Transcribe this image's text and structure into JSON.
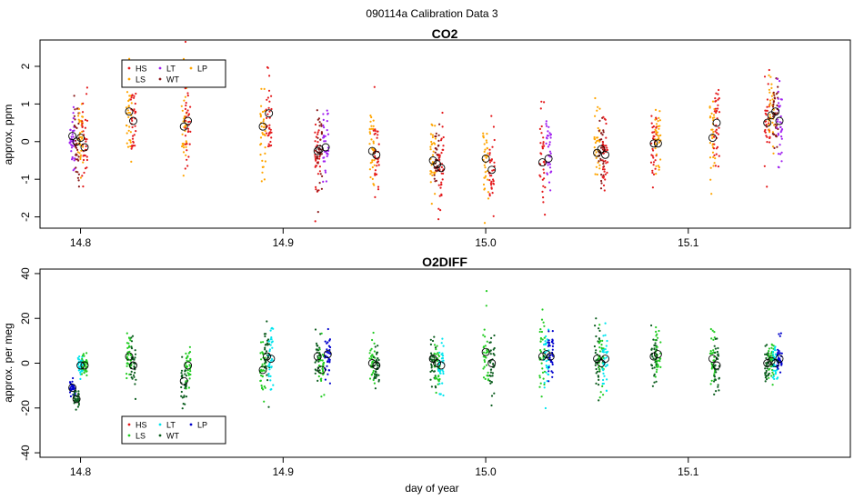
{
  "page": {
    "title": "090114a   Calibration Data 3",
    "xlabel": "day of year"
  },
  "chart_data": [
    {
      "type": "scatter",
      "title": "CO2",
      "ylabel": "approx. ppm",
      "xlabel": "day of year",
      "xlim": [
        14.78,
        15.18
      ],
      "ylim": [
        -2.3,
        2.7
      ],
      "xticks": [
        "14.8",
        "14.9",
        "15.0",
        "15.1"
      ],
      "xtick_values": [
        14.8,
        14.9,
        15.0,
        15.1
      ],
      "yticks": [
        "-2",
        "-1",
        "0",
        "1",
        "2"
      ],
      "ytick_values": [
        -2,
        -1,
        0,
        1,
        2
      ],
      "legend_position": "top-left",
      "legend": [
        {
          "name": "HS",
          "color": "#e41a1c"
        },
        {
          "name": "LS",
          "color": "#ffa500"
        },
        {
          "name": "LT",
          "color": "#a020f0"
        },
        {
          "name": "WT",
          "color": "#8b1a1a"
        },
        {
          "name": "LP",
          "color": "#ffa500"
        }
      ],
      "groups": [
        {
          "series": [
            {
              "name": "LT",
              "x": 14.796,
              "mean": 0.15,
              "sd": 0.55,
              "color": "#a020f0"
            },
            {
              "name": "WT",
              "x": 14.798,
              "mean": 0.0,
              "sd": 0.6,
              "color": "#8b1a1a"
            },
            {
              "name": "LS",
              "x": 14.8,
              "mean": 0.1,
              "sd": 0.6,
              "color": "#ffa500"
            },
            {
              "name": "HS",
              "x": 14.802,
              "mean": -0.15,
              "sd": 0.6,
              "color": "#e41a1c"
            }
          ]
        },
        {
          "series": [
            {
              "name": "LS",
              "x": 14.824,
              "mean": 0.8,
              "sd": 0.55,
              "color": "#ffa500"
            },
            {
              "name": "HS",
              "x": 14.826,
              "mean": 0.55,
              "sd": 0.6,
              "color": "#e41a1c"
            }
          ]
        },
        {
          "series": [
            {
              "name": "LS",
              "x": 14.851,
              "mean": 0.4,
              "sd": 0.6,
              "color": "#ffa500"
            },
            {
              "name": "HS",
              "x": 14.853,
              "mean": 0.55,
              "sd": 0.6,
              "color": "#e41a1c"
            }
          ]
        },
        {
          "series": [
            {
              "name": "LS",
              "x": 14.89,
              "mean": 0.4,
              "sd": 0.6,
              "color": "#ffa500"
            },
            {
              "name": "HS",
              "x": 14.893,
              "mean": 0.75,
              "sd": 0.6,
              "color": "#e41a1c"
            }
          ]
        },
        {
          "series": [
            {
              "name": "HS",
              "x": 14.917,
              "mean": -0.25,
              "sd": 0.55,
              "color": "#e41a1c"
            },
            {
              "name": "WT",
              "x": 14.918,
              "mean": -0.2,
              "sd": 0.5,
              "color": "#8b1a1a"
            },
            {
              "name": "LT",
              "x": 14.921,
              "mean": -0.15,
              "sd": 0.5,
              "color": "#a020f0"
            }
          ]
        },
        {
          "series": [
            {
              "name": "LS",
              "x": 14.944,
              "mean": -0.25,
              "sd": 0.55,
              "color": "#ffa500"
            },
            {
              "name": "HS",
              "x": 14.946,
              "mean": -0.35,
              "sd": 0.55,
              "color": "#e41a1c"
            }
          ]
        },
        {
          "series": [
            {
              "name": "LS",
              "x": 14.974,
              "mean": -0.5,
              "sd": 0.6,
              "color": "#ffa500"
            },
            {
              "name": "WT",
              "x": 14.976,
              "mean": -0.6,
              "sd": 0.5,
              "color": "#8b1a1a"
            },
            {
              "name": "HS",
              "x": 14.978,
              "mean": -0.7,
              "sd": 0.6,
              "color": "#e41a1c"
            }
          ]
        },
        {
          "series": [
            {
              "name": "LS",
              "x": 15.0,
              "mean": -0.45,
              "sd": 0.6,
              "color": "#ffa500"
            },
            {
              "name": "HS",
              "x": 15.003,
              "mean": -0.75,
              "sd": 0.6,
              "color": "#e41a1c"
            }
          ]
        },
        {
          "series": [
            {
              "name": "HS",
              "x": 15.028,
              "mean": -0.55,
              "sd": 0.6,
              "color": "#e41a1c"
            },
            {
              "name": "LT",
              "x": 15.031,
              "mean": -0.45,
              "sd": 0.5,
              "color": "#a020f0"
            }
          ]
        },
        {
          "series": [
            {
              "name": "LS",
              "x": 15.055,
              "mean": -0.3,
              "sd": 0.6,
              "color": "#ffa500"
            },
            {
              "name": "WT",
              "x": 15.057,
              "mean": -0.2,
              "sd": 0.5,
              "color": "#8b1a1a"
            },
            {
              "name": "HS",
              "x": 15.059,
              "mean": -0.35,
              "sd": 0.6,
              "color": "#e41a1c"
            }
          ]
        },
        {
          "series": [
            {
              "name": "HS",
              "x": 15.083,
              "mean": -0.05,
              "sd": 0.55,
              "color": "#e41a1c"
            },
            {
              "name": "LS",
              "x": 15.085,
              "mean": -0.05,
              "sd": 0.5,
              "color": "#ffa500"
            }
          ]
        },
        {
          "series": [
            {
              "name": "LS",
              "x": 15.112,
              "mean": 0.1,
              "sd": 0.6,
              "color": "#ffa500"
            },
            {
              "name": "HS",
              "x": 15.114,
              "mean": 0.5,
              "sd": 0.6,
              "color": "#e41a1c"
            }
          ]
        },
        {
          "series": [
            {
              "name": "HS",
              "x": 15.139,
              "mean": 0.5,
              "sd": 0.6,
              "color": "#e41a1c"
            },
            {
              "name": "LS",
              "x": 15.141,
              "mean": 0.7,
              "sd": 0.55,
              "color": "#ffa500"
            },
            {
              "name": "WT",
              "x": 15.143,
              "mean": 0.8,
              "sd": 0.5,
              "color": "#8b1a1a"
            },
            {
              "name": "LT",
              "x": 15.145,
              "mean": 0.55,
              "sd": 0.55,
              "color": "#a020f0"
            }
          ]
        }
      ]
    },
    {
      "type": "scatter",
      "title": "O2DIFF",
      "ylabel": "approx. per meg",
      "xlabel": "day of year",
      "xlim": [
        14.78,
        15.18
      ],
      "ylim": [
        -42,
        42
      ],
      "xticks": [
        "14.8",
        "14.9",
        "15.0",
        "15.1"
      ],
      "xtick_values": [
        14.8,
        14.9,
        15.0,
        15.1
      ],
      "yticks": [
        "-40",
        "-20",
        "0",
        "20",
        "40"
      ],
      "ytick_values": [
        -40,
        -20,
        0,
        20,
        40
      ],
      "legend_position": "bottom-left",
      "legend": [
        {
          "name": "HS",
          "color": "#e41a1c"
        },
        {
          "name": "LS",
          "color": "#22cc22"
        },
        {
          "name": "LT",
          "color": "#00e5ee"
        },
        {
          "name": "WT",
          "color": "#0b5d1e"
        },
        {
          "name": "LP",
          "color": "#0000cd"
        }
      ],
      "groups": [
        {
          "series": [
            {
              "name": "LP",
              "x": 14.796,
              "mean": -11,
              "sd": 2,
              "color": "#0000cd"
            },
            {
              "name": "WT",
              "x": 14.798,
              "mean": -16,
              "sd": 2,
              "color": "#0b5d1e"
            },
            {
              "name": "LT",
              "x": 14.8,
              "mean": -1,
              "sd": 2.5,
              "color": "#00e5ee"
            },
            {
              "name": "LS",
              "x": 14.802,
              "mean": -1,
              "sd": 2.5,
              "color": "#22cc22"
            }
          ]
        },
        {
          "series": [
            {
              "name": "LS",
              "x": 14.824,
              "mean": 3,
              "sd": 5,
              "color": "#22cc22"
            },
            {
              "name": "WT",
              "x": 14.826,
              "mean": -1,
              "sd": 5,
              "color": "#0b5d1e"
            }
          ]
        },
        {
          "series": [
            {
              "name": "WT",
              "x": 14.851,
              "mean": -8,
              "sd": 6,
              "color": "#0b5d1e"
            },
            {
              "name": "LS",
              "x": 14.853,
              "mean": -1,
              "sd": 5,
              "color": "#22cc22"
            }
          ]
        },
        {
          "series": [
            {
              "name": "LS",
              "x": 14.89,
              "mean": -3,
              "sd": 5,
              "color": "#22cc22"
            },
            {
              "name": "WT",
              "x": 14.892,
              "mean": 3,
              "sd": 6,
              "color": "#0b5d1e"
            },
            {
              "name": "LT",
              "x": 14.894,
              "mean": 2,
              "sd": 8,
              "color": "#00e5ee"
            }
          ]
        },
        {
          "series": [
            {
              "name": "WT",
              "x": 14.917,
              "mean": 3,
              "sd": 5,
              "color": "#0b5d1e"
            },
            {
              "name": "LS",
              "x": 14.919,
              "mean": -3,
              "sd": 5,
              "color": "#22cc22"
            },
            {
              "name": "LP",
              "x": 14.922,
              "mean": 4,
              "sd": 5,
              "color": "#0000cd"
            }
          ]
        },
        {
          "series": [
            {
              "name": "LS",
              "x": 14.944,
              "mean": 0,
              "sd": 5,
              "color": "#22cc22"
            },
            {
              "name": "WT",
              "x": 14.946,
              "mean": -1,
              "sd": 5,
              "color": "#0b5d1e"
            }
          ]
        },
        {
          "series": [
            {
              "name": "WT",
              "x": 14.974,
              "mean": 2,
              "sd": 5,
              "color": "#0b5d1e"
            },
            {
              "name": "LS",
              "x": 14.976,
              "mean": 0,
              "sd": 5,
              "color": "#22cc22"
            },
            {
              "name": "LT",
              "x": 14.978,
              "mean": -1,
              "sd": 6,
              "color": "#00e5ee"
            }
          ]
        },
        {
          "series": [
            {
              "name": "LS",
              "x": 15.0,
              "mean": 5,
              "sd": 8,
              "color": "#22cc22"
            },
            {
              "name": "WT",
              "x": 15.003,
              "mean": 0,
              "sd": 6,
              "color": "#0b5d1e"
            }
          ]
        },
        {
          "series": [
            {
              "name": "LS",
              "x": 15.028,
              "mean": 3,
              "sd": 8,
              "color": "#22cc22"
            },
            {
              "name": "LT",
              "x": 15.03,
              "mean": 4,
              "sd": 8,
              "color": "#00e5ee"
            },
            {
              "name": "LP",
              "x": 15.032,
              "mean": 3,
              "sd": 6,
              "color": "#0000cd"
            }
          ]
        },
        {
          "series": [
            {
              "name": "WT",
              "x": 15.055,
              "mean": 2,
              "sd": 8,
              "color": "#0b5d1e"
            },
            {
              "name": "LS",
              "x": 15.057,
              "mean": 0,
              "sd": 6,
              "color": "#22cc22"
            },
            {
              "name": "LT",
              "x": 15.059,
              "mean": 2,
              "sd": 8,
              "color": "#00e5ee"
            }
          ]
        },
        {
          "series": [
            {
              "name": "WT",
              "x": 15.083,
              "mean": 3,
              "sd": 6,
              "color": "#0b5d1e"
            },
            {
              "name": "LS",
              "x": 15.085,
              "mean": 4,
              "sd": 6,
              "color": "#22cc22"
            }
          ]
        },
        {
          "series": [
            {
              "name": "LS",
              "x": 15.112,
              "mean": 2,
              "sd": 6,
              "color": "#22cc22"
            },
            {
              "name": "WT",
              "x": 15.114,
              "mean": -1,
              "sd": 8,
              "color": "#0b5d1e"
            }
          ]
        },
        {
          "series": [
            {
              "name": "WT",
              "x": 15.139,
              "mean": 0,
              "sd": 4,
              "color": "#0b5d1e"
            },
            {
              "name": "LS",
              "x": 15.141,
              "mean": 1,
              "sd": 4,
              "color": "#22cc22"
            },
            {
              "name": "LT",
              "x": 15.143,
              "mean": 0,
              "sd": 4,
              "color": "#00e5ee"
            },
            {
              "name": "LP",
              "x": 15.145,
              "mean": 2,
              "sd": 4,
              "color": "#0000cd"
            }
          ]
        }
      ]
    }
  ]
}
